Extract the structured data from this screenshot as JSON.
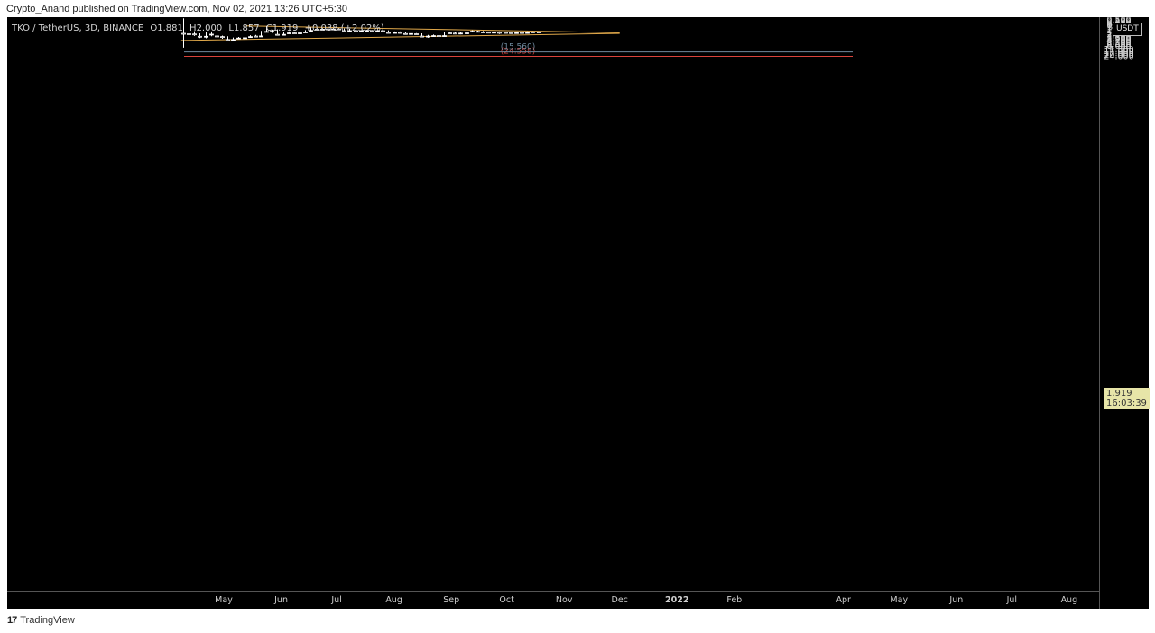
{
  "header": {
    "publisher_text": "Crypto_Anand published on TradingView.com, Nov 02, 2021 13:26 UTC+5:30"
  },
  "legend": {
    "symbol": "TKO / TetherUS, 3D, BINANCE",
    "open": "O1.881",
    "high": "H2.000",
    "low": "L1.857",
    "close": "C1.919",
    "change": "+0.038 (+2.02%)"
  },
  "toolbar": {
    "currency_label": "USDT",
    "axis_top_label": "3"
  },
  "last_price": {
    "price": "1.919",
    "countdown": "16:03:39"
  },
  "footer": {
    "logo_mark": "17",
    "brand": "TradingView"
  },
  "colors": {
    "background": "#000000",
    "candle_up": "#ffffff",
    "candle_down": "#ffffff",
    "trendline": "#e0a84a",
    "target_high": "#d9433b",
    "target_low": "#6f8a9e",
    "last_price_bg": "#e7e5a8"
  },
  "chart_data": {
    "type": "candlestick",
    "scale": "log",
    "ylim": [
      0.43,
      33
    ],
    "y_ticks": [
      "24.000",
      "20.000",
      "17.000",
      "14.000",
      "11.500",
      "9.500",
      "8.000",
      "6.500",
      "5.500",
      "4.700",
      "3.900",
      "3.300",
      "2.700",
      "2.300",
      "1.919",
      "1.600",
      "1.350",
      "1.150",
      "0.950",
      "0.810",
      "0.690",
      "0.590",
      "0.500"
    ],
    "x_ticks": [
      "May",
      "Jun",
      "Jul",
      "Aug",
      "Sep",
      "Oct",
      "Nov",
      "Dec",
      "2022",
      "Feb",
      "Apr",
      "May",
      "Jun",
      "Jul",
      "Aug"
    ],
    "horizontal_levels": [
      {
        "label": "(24.558)",
        "value": 24.558,
        "color": "target_high"
      },
      {
        "label": "(15.560)",
        "value": 15.56,
        "color": "target_low"
      }
    ],
    "candles": [
      {
        "date": "2021-04-09",
        "o": 2.2,
        "h": 9.9,
        "l": 0.45,
        "c": 2.2
      },
      {
        "date": "2021-04-12",
        "o": 2.2,
        "h": 2.4,
        "l": 1.8,
        "c": 2.3
      },
      {
        "date": "2021-04-15",
        "o": 2.3,
        "h": 2.9,
        "l": 1.75,
        "c": 2.35
      },
      {
        "date": "2021-04-18",
        "o": 2.35,
        "h": 3.6,
        "l": 2.2,
        "c": 3.0
      },
      {
        "date": "2021-04-21",
        "o": 3.0,
        "h": 3.7,
        "l": 2.0,
        "c": 2.4
      },
      {
        "date": "2021-04-24",
        "o": 2.4,
        "h": 3.0,
        "l": 1.8,
        "c": 2.2
      },
      {
        "date": "2021-04-27",
        "o": 2.2,
        "h": 3.1,
        "l": 2.1,
        "c": 2.9
      },
      {
        "date": "2021-04-30",
        "o": 2.9,
        "h": 3.9,
        "l": 2.8,
        "c": 3.1
      },
      {
        "date": "2021-05-03",
        "o": 3.1,
        "h": 5.0,
        "l": 3.0,
        "c": 4.2
      },
      {
        "date": "2021-05-06",
        "o": 4.2,
        "h": 4.4,
        "l": 3.4,
        "c": 3.6
      },
      {
        "date": "2021-05-09",
        "o": 3.6,
        "h": 3.9,
        "l": 3.2,
        "c": 3.5
      },
      {
        "date": "2021-05-12",
        "o": 3.5,
        "h": 3.8,
        "l": 3.0,
        "c": 3.1
      },
      {
        "date": "2021-05-15",
        "o": 3.1,
        "h": 3.4,
        "l": 2.7,
        "c": 2.85
      },
      {
        "date": "2021-05-18",
        "o": 2.85,
        "h": 3.1,
        "l": 2.6,
        "c": 2.95
      },
      {
        "date": "2021-05-21",
        "o": 2.9,
        "h": 2.95,
        "l": 1.7,
        "c": 1.8
      },
      {
        "date": "2021-05-24",
        "o": 1.8,
        "h": 1.9,
        "l": 1.02,
        "c": 1.75
      },
      {
        "date": "2021-05-27",
        "o": 1.75,
        "h": 2.1,
        "l": 1.5,
        "c": 1.6
      },
      {
        "date": "2021-05-30",
        "o": 1.6,
        "h": 2.6,
        "l": 1.45,
        "c": 2.45
      },
      {
        "date": "2021-06-02",
        "o": 2.45,
        "h": 2.8,
        "l": 2.0,
        "c": 2.1
      },
      {
        "date": "2021-06-05",
        "o": 2.1,
        "h": 2.3,
        "l": 1.8,
        "c": 2.0
      },
      {
        "date": "2021-06-08",
        "o": 2.0,
        "h": 2.3,
        "l": 1.85,
        "c": 2.1
      },
      {
        "date": "2021-06-11",
        "o": 2.1,
        "h": 2.15,
        "l": 1.8,
        "c": 1.9
      },
      {
        "date": "2021-06-14",
        "o": 1.9,
        "h": 1.95,
        "l": 1.55,
        "c": 1.6
      },
      {
        "date": "2021-06-17",
        "o": 1.6,
        "h": 1.7,
        "l": 1.15,
        "c": 1.35
      },
      {
        "date": "2021-06-20",
        "o": 1.35,
        "h": 1.45,
        "l": 1.28,
        "c": 1.42
      },
      {
        "date": "2021-06-23",
        "o": 1.42,
        "h": 1.48,
        "l": 1.28,
        "c": 1.33
      },
      {
        "date": "2021-06-26",
        "o": 1.33,
        "h": 1.4,
        "l": 1.27,
        "c": 1.38
      },
      {
        "date": "2021-06-29",
        "o": 1.38,
        "h": 1.42,
        "l": 1.27,
        "c": 1.31
      },
      {
        "date": "2021-07-02",
        "o": 1.31,
        "h": 1.42,
        "l": 1.28,
        "c": 1.38
      },
      {
        "date": "2021-07-05",
        "o": 1.38,
        "h": 1.75,
        "l": 1.3,
        "c": 1.65
      },
      {
        "date": "2021-07-08",
        "o": 1.65,
        "h": 1.85,
        "l": 1.35,
        "c": 1.4
      },
      {
        "date": "2021-07-11",
        "o": 1.4,
        "h": 1.7,
        "l": 1.22,
        "c": 1.65
      },
      {
        "date": "2021-07-14",
        "o": 1.65,
        "h": 1.75,
        "l": 1.55,
        "c": 1.62
      },
      {
        "date": "2021-07-17",
        "o": 1.62,
        "h": 1.7,
        "l": 1.52,
        "c": 1.58
      },
      {
        "date": "2021-07-20",
        "o": 1.58,
        "h": 1.7,
        "l": 1.55,
        "c": 1.65
      },
      {
        "date": "2021-07-23",
        "o": 1.65,
        "h": 1.72,
        "l": 1.55,
        "c": 1.6
      },
      {
        "date": "2021-07-26",
        "o": 1.6,
        "h": 1.7,
        "l": 1.55,
        "c": 1.66
      },
      {
        "date": "2021-07-29",
        "o": 1.66,
        "h": 2.05,
        "l": 1.6,
        "c": 2.0
      },
      {
        "date": "2021-08-01",
        "o": 2.0,
        "h": 2.05,
        "l": 1.8,
        "c": 1.85
      },
      {
        "date": "2021-08-04",
        "o": 1.85,
        "h": 2.05,
        "l": 1.8,
        "c": 2.0
      },
      {
        "date": "2021-08-07",
        "o": 2.0,
        "h": 2.3,
        "l": 1.95,
        "c": 2.25
      },
      {
        "date": "2021-08-10",
        "o": 2.25,
        "h": 2.6,
        "l": 2.15,
        "c": 2.2
      },
      {
        "date": "2021-08-13",
        "o": 2.2,
        "h": 2.4,
        "l": 2.15,
        "c": 2.3
      },
      {
        "date": "2021-08-16",
        "o": 2.3,
        "h": 3.3,
        "l": 2.2,
        "c": 2.95
      },
      {
        "date": "2021-08-19",
        "o": 2.95,
        "h": 3.5,
        "l": 2.6,
        "c": 2.8
      },
      {
        "date": "2021-08-22",
        "o": 2.8,
        "h": 3.05,
        "l": 2.5,
        "c": 2.6
      },
      {
        "date": "2021-08-25",
        "o": 2.6,
        "h": 2.95,
        "l": 2.5,
        "c": 2.8
      },
      {
        "date": "2021-08-28",
        "o": 2.8,
        "h": 2.8,
        "l": 1.95,
        "c": 2.05
      },
      {
        "date": "2021-08-31",
        "o": 2.05,
        "h": 2.2,
        "l": 1.85,
        "c": 2.1
      },
      {
        "date": "2021-09-03",
        "o": 2.1,
        "h": 2.2,
        "l": 1.95,
        "c": 2.15
      },
      {
        "date": "2021-09-06",
        "o": 2.15,
        "h": 2.45,
        "l": 1.95,
        "c": 2.1
      },
      {
        "date": "2021-09-09",
        "o": 2.1,
        "h": 2.1,
        "l": 1.65,
        "c": 1.75
      },
      {
        "date": "2021-09-12",
        "o": 1.75,
        "h": 1.85,
        "l": 1.6,
        "c": 1.7
      },
      {
        "date": "2021-09-15",
        "o": 1.7,
        "h": 1.85,
        "l": 1.65,
        "c": 1.78
      },
      {
        "date": "2021-09-18",
        "o": 1.78,
        "h": 1.95,
        "l": 1.72,
        "c": 1.9
      },
      {
        "date": "2021-09-21",
        "o": 1.9,
        "h": 2.05,
        "l": 1.85,
        "c": 1.95
      },
      {
        "date": "2021-09-24",
        "o": 1.95,
        "h": 2.0,
        "l": 1.82,
        "c": 1.88
      },
      {
        "date": "2021-09-27",
        "o": 1.88,
        "h": 2.35,
        "l": 1.8,
        "c": 1.98
      },
      {
        "date": "2021-09-30",
        "o": 1.98,
        "h": 2.05,
        "l": 1.9,
        "c": 2.0
      },
      {
        "date": "2021-10-03",
        "o": 2.0,
        "h": 2.1,
        "l": 1.92,
        "c": 2.05
      },
      {
        "date": "2021-10-06",
        "o": 2.05,
        "h": 2.1,
        "l": 1.95,
        "c": 2.0
      },
      {
        "date": "2021-10-09",
        "o": 2.0,
        "h": 2.2,
        "l": 1.95,
        "c": 2.02
      },
      {
        "date": "2021-10-12",
        "o": 2.02,
        "h": 2.05,
        "l": 1.8,
        "c": 1.85
      },
      {
        "date": "2021-10-15",
        "o": 1.85,
        "h": 1.95,
        "l": 1.8,
        "c": 1.88
      },
      {
        "date": "2021-10-18",
        "o": 1.881,
        "h": 2.0,
        "l": 1.857,
        "c": 1.919
      }
    ],
    "trendlines": [
      {
        "name": "upper",
        "from": {
          "date": "2021-04-08",
          "price": 4.62
        },
        "to": {
          "date": "2021-12-01",
          "price": 2.22
        }
      },
      {
        "name": "lower",
        "from": {
          "date": "2021-05-13",
          "price": 1.0
        },
        "to": {
          "date": "2021-12-01",
          "price": 2.06
        }
      }
    ]
  }
}
